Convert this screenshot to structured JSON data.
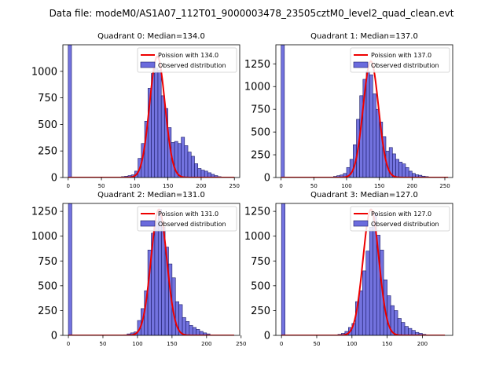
{
  "figure": {
    "suptitle": "Data file: modeM0/AS1A07_112T01_9000003478_23505cztM0_level2_quad_clean.evt"
  },
  "colors": {
    "bar_fill": "#6b6bdd",
    "bar_edge": "#1a1a66",
    "curve": "#ee0000",
    "axes": "#000000"
  },
  "chart_data": [
    {
      "type": "bar",
      "title": "Quadrant 0: Median=134.0",
      "xlim": [
        -8,
        258
      ],
      "ylim": [
        0,
        1250
      ],
      "xticks": [
        0,
        50,
        100,
        150,
        200,
        250
      ],
      "yticks": [
        0,
        250,
        500,
        750,
        1000
      ],
      "legend": [
        "Poission with 134.0",
        "Observed distribution"
      ],
      "legend_position": "upper right",
      "bin_width": 5,
      "bins": [
        [
          0,
          1250
        ],
        [
          80,
          8
        ],
        [
          85,
          12
        ],
        [
          90,
          18
        ],
        [
          95,
          25
        ],
        [
          100,
          60
        ],
        [
          105,
          180
        ],
        [
          110,
          320
        ],
        [
          115,
          530
        ],
        [
          120,
          840
        ],
        [
          125,
          980
        ],
        [
          130,
          1030
        ],
        [
          135,
          1010
        ],
        [
          140,
          770
        ],
        [
          145,
          650
        ],
        [
          150,
          470
        ],
        [
          155,
          330
        ],
        [
          160,
          340
        ],
        [
          165,
          320
        ],
        [
          170,
          380
        ],
        [
          175,
          300
        ],
        [
          180,
          240
        ],
        [
          185,
          200
        ],
        [
          190,
          130
        ],
        [
          195,
          85
        ],
        [
          200,
          70
        ],
        [
          205,
          60
        ],
        [
          210,
          45
        ],
        [
          215,
          30
        ],
        [
          220,
          18
        ],
        [
          225,
          8
        ]
      ],
      "poisson_mean": 134.0,
      "poisson_peak": 1140,
      "curve_x": [
        0,
        250
      ]
    },
    {
      "type": "bar",
      "title": "Quadrant 1: Median=137.0",
      "xlim": [
        -8,
        262
      ],
      "ylim": [
        0,
        1460
      ],
      "xticks": [
        0,
        50,
        100,
        150,
        200,
        250
      ],
      "yticks": [
        0,
        250,
        500,
        750,
        1000,
        1250
      ],
      "legend": [
        "Poission with 137.0",
        "Observed distribution"
      ],
      "legend_position": "upper right",
      "bin_width": 5,
      "bins": [
        [
          0,
          1460
        ],
        [
          80,
          12
        ],
        [
          85,
          20
        ],
        [
          90,
          28
        ],
        [
          95,
          45
        ],
        [
          100,
          110
        ],
        [
          105,
          200
        ],
        [
          110,
          360
        ],
        [
          115,
          640
        ],
        [
          120,
          900
        ],
        [
          125,
          1080
        ],
        [
          130,
          1170
        ],
        [
          135,
          1130
        ],
        [
          140,
          920
        ],
        [
          145,
          750
        ],
        [
          150,
          610
        ],
        [
          155,
          450
        ],
        [
          160,
          290
        ],
        [
          165,
          330
        ],
        [
          170,
          260
        ],
        [
          175,
          200
        ],
        [
          180,
          170
        ],
        [
          185,
          150
        ],
        [
          190,
          110
        ],
        [
          195,
          70
        ],
        [
          200,
          45
        ],
        [
          205,
          30
        ],
        [
          210,
          25
        ],
        [
          215,
          15
        ],
        [
          220,
          10
        ]
      ],
      "poisson_mean": 137.0,
      "poisson_peak": 1280,
      "curve_x": [
        0,
        255
      ]
    },
    {
      "type": "bar",
      "title": "Quadrant 2: Median=131.0",
      "xlim": [
        -8,
        248
      ],
      "ylim": [
        0,
        1330
      ],
      "xticks": [
        0,
        50,
        100,
        150,
        200,
        250
      ],
      "yticks": [
        0,
        250,
        500,
        750,
        1000,
        1250
      ],
      "legend": [
        "Poission with 131.0",
        "Observed distribution"
      ],
      "legend_position": "upper right",
      "bin_width": 5,
      "bins": [
        [
          0,
          1330
        ],
        [
          80,
          6
        ],
        [
          85,
          15
        ],
        [
          90,
          25
        ],
        [
          95,
          35
        ],
        [
          100,
          150
        ],
        [
          105,
          270
        ],
        [
          110,
          450
        ],
        [
          115,
          860
        ],
        [
          120,
          1030
        ],
        [
          125,
          1150
        ],
        [
          130,
          1270
        ],
        [
          135,
          1090
        ],
        [
          140,
          890
        ],
        [
          145,
          720
        ],
        [
          150,
          580
        ],
        [
          155,
          340
        ],
        [
          160,
          310
        ],
        [
          165,
          180
        ],
        [
          170,
          140
        ],
        [
          175,
          100
        ],
        [
          180,
          80
        ],
        [
          185,
          60
        ],
        [
          190,
          40
        ],
        [
          195,
          25
        ],
        [
          200,
          15
        ]
      ],
      "poisson_mean": 131.0,
      "poisson_peak": 1270,
      "curve_x": [
        0,
        240
      ]
    },
    {
      "type": "bar",
      "title": "Quadrant 3: Median=127.0",
      "xlim": [
        -8,
        243
      ],
      "ylim": [
        0,
        1330
      ],
      "xticks": [
        0,
        50,
        100,
        150,
        200
      ],
      "yticks": [
        0,
        250,
        500,
        750,
        1000,
        1250
      ],
      "legend": [
        "Poission with 127.0",
        "Observed distribution"
      ],
      "legend_position": "upper right",
      "bin_width": 5,
      "bins": [
        [
          0,
          1330
        ],
        [
          80,
          10
        ],
        [
          85,
          20
        ],
        [
          90,
          40
        ],
        [
          95,
          80
        ],
        [
          100,
          120
        ],
        [
          105,
          340
        ],
        [
          110,
          450
        ],
        [
          115,
          650
        ],
        [
          120,
          850
        ],
        [
          125,
          1090
        ],
        [
          130,
          1230
        ],
        [
          135,
          1010
        ],
        [
          140,
          860
        ],
        [
          145,
          560
        ],
        [
          150,
          400
        ],
        [
          155,
          300
        ],
        [
          160,
          250
        ],
        [
          165,
          170
        ],
        [
          170,
          130
        ],
        [
          175,
          90
        ],
        [
          180,
          70
        ],
        [
          185,
          50
        ],
        [
          190,
          30
        ],
        [
          195,
          20
        ],
        [
          200,
          10
        ]
      ],
      "poisson_mean": 127.0,
      "poisson_peak": 1270,
      "curve_x": [
        0,
        232
      ]
    }
  ]
}
